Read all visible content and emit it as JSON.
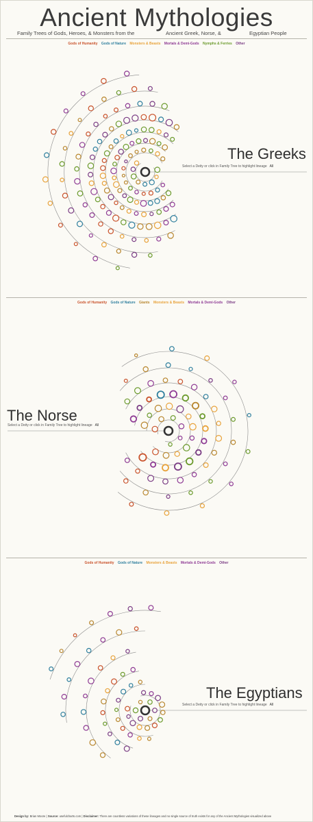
{
  "header": {
    "title": "Ancient Mythologies",
    "subtitle_parts": [
      "Family Trees of Gods, Heroes, & Monsters from the",
      "Ancient Greek, Norse, &",
      "Egyptian People"
    ]
  },
  "colors": {
    "humanity": "#c9522b",
    "nature": "#2f7f9e",
    "monsters": "#e8a23a",
    "mortals": "#8e3a94",
    "nymphs": "#6b9a2c",
    "giants": "#b8862e",
    "other": "#7a3c84",
    "root": "#333333",
    "line": "#8a8a8a"
  },
  "greeks": {
    "title": "The Greeks",
    "hint": "Select a Deity or click in Family Tree to highlight lineage",
    "all_label": "All",
    "legend": [
      {
        "label": "Gods of Humanity",
        "color": "#c9522b"
      },
      {
        "label": "Gods of Nature",
        "color": "#2f7f9e"
      },
      {
        "label": "Monsters & Beasts",
        "color": "#e8a23a"
      },
      {
        "label": "Mortals & Demi-Gods",
        "color": "#8e3a94"
      },
      {
        "label": "Nymphs & Ferries",
        "color": "#6b9a2c"
      },
      {
        "label": "Other",
        "color": "#7a3c84"
      }
    ]
  },
  "norse": {
    "title": "The Norse",
    "hint": "Select a Deity or click in Family Tree to highlight lineage",
    "all_label": "All",
    "legend": [
      {
        "label": "Gods of Humanity",
        "color": "#c9522b"
      },
      {
        "label": "Gods of Nature",
        "color": "#2f7f9e"
      },
      {
        "label": "Giants",
        "color": "#b8862e"
      },
      {
        "label": "Monsters & Beasts",
        "color": "#e8a23a"
      },
      {
        "label": "Mortals & Demi-Gods",
        "color": "#8e3a94"
      },
      {
        "label": "Other",
        "color": "#7a3c84"
      }
    ]
  },
  "egyptians": {
    "title": "The Egyptians",
    "hint": "Select a Deity or click in Family Tree to highlight lineage",
    "all_label": "All",
    "legend": [
      {
        "label": "Gods of Humanity",
        "color": "#c9522b"
      },
      {
        "label": "Gods of Nature",
        "color": "#2f7f9e"
      },
      {
        "label": "Monsters & Beasts",
        "color": "#e8a23a"
      },
      {
        "label": "Mortals & Demi-Gods",
        "color": "#8e3a94"
      },
      {
        "label": "Other",
        "color": "#7a3c84"
      }
    ]
  },
  "footer": {
    "design_label": "Design by:",
    "design_value": "Brian Moore",
    "source_label": "Source:",
    "source_value": "usefulcharts.com",
    "disclaimer_label": "Disclaimer:",
    "disclaimer_value": "There are countless variations of these lineages and no single source of truth exists for any of the Ancient Mythologies visualized above"
  }
}
